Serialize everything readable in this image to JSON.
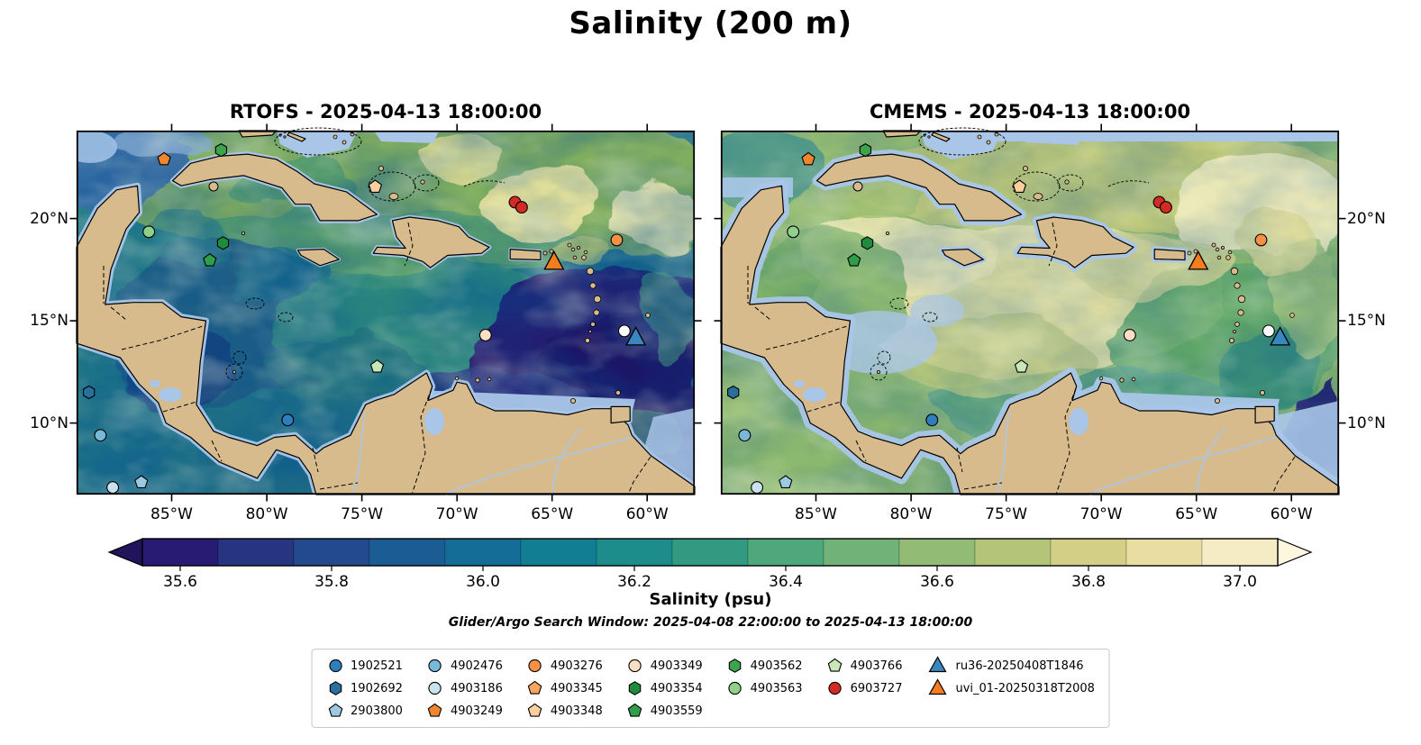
{
  "title": "Salinity (200 m)",
  "panels": [
    {
      "key": "rtofs",
      "title": "RTOFS - 2025-04-13 18:00:00"
    },
    {
      "key": "cmems",
      "title": "CMEMS - 2025-04-13 18:00:00"
    }
  ],
  "axes": {
    "extent": {
      "lon_min": -90,
      "lon_max": -57.5,
      "lat_min": 6.5,
      "lat_max": 24.3
    },
    "lat_ticks": [
      {
        "label": "20°N",
        "lat": 20
      },
      {
        "label": "15°N",
        "lat": 15
      },
      {
        "label": "10°N",
        "lat": 10
      }
    ],
    "lon_ticks": [
      {
        "label": "85°W",
        "lon": -85
      },
      {
        "label": "80°W",
        "lon": -80
      },
      {
        "label": "75°W",
        "lon": -75
      },
      {
        "label": "70°W",
        "lon": -70
      },
      {
        "label": "65°W",
        "lon": -65
      },
      {
        "label": "60°W",
        "lon": -60
      }
    ]
  },
  "colorbar": {
    "label": "Salinity (psu)",
    "tick_labels": [
      "35.6",
      "35.8",
      "36.0",
      "36.2",
      "36.4",
      "36.6",
      "36.8",
      "37.0"
    ],
    "tick_values": [
      35.6,
      35.8,
      36.0,
      36.2,
      36.4,
      36.6,
      36.8,
      37.0
    ],
    "vmin": 35.55,
    "vmax": 37.05,
    "segment_colors": [
      "#281b73",
      "#27347f",
      "#234a8c",
      "#1b5c94",
      "#146d96",
      "#117e93",
      "#1c8d8b",
      "#339a82",
      "#4fa77c",
      "#70b277",
      "#92bc75",
      "#b4c57a",
      "#d3cf87",
      "#e9dda1",
      "#f5ebc4"
    ],
    "under_color": "#23125c",
    "over_color": "#fdf7e0"
  },
  "subtitle": "Glider/Argo Search Window: 2025-04-08 22:00:00 to 2025-04-13 18:00:00",
  "map_colors": {
    "land": "#d8bb8c",
    "shallow": "#a9c6e8",
    "coast": "#000000"
  },
  "legend": {
    "columns": [
      [
        "1902521",
        "1902692",
        "2903800"
      ],
      [
        "4902476",
        "4903186",
        "4903249"
      ],
      [
        "4903276",
        "4903345",
        "4903348"
      ],
      [
        "4903349",
        "4903354",
        "4903559"
      ],
      [
        "4903562",
        "4903563"
      ],
      [
        "4903766",
        "6903727"
      ],
      [
        "ru36-20250408T1846",
        "uvi_01-20250318T2008"
      ]
    ],
    "styles": {
      "1902521": {
        "shape": "circle",
        "color": "#2e7ebc"
      },
      "1902692": {
        "shape": "hexagon",
        "color": "#2a6f9e"
      },
      "2903800": {
        "shape": "pentagon",
        "color": "#9ec9e2"
      },
      "4902476": {
        "shape": "circle",
        "color": "#7ab8d9"
      },
      "4903186": {
        "shape": "circle",
        "color": "#c9e2f0"
      },
      "4903249": {
        "shape": "pentagon",
        "color": "#f0862c"
      },
      "4903276": {
        "shape": "circle",
        "color": "#f59044"
      },
      "4903345": {
        "shape": "pentagon",
        "color": "#f8a55e"
      },
      "4903348": {
        "shape": "pentagon",
        "color": "#fbcf9e"
      },
      "4903349": {
        "shape": "circle",
        "color": "#fcdfc2"
      },
      "4903354": {
        "shape": "hexagon",
        "color": "#1e8c3c"
      },
      "4903559": {
        "shape": "pentagon",
        "color": "#2e9e4a"
      },
      "4903562": {
        "shape": "hexagon",
        "color": "#3da44e"
      },
      "4903563": {
        "shape": "circle",
        "color": "#8fd08a"
      },
      "4903766": {
        "shape": "pentagon",
        "color": "#c8e8b8"
      },
      "6903727": {
        "shape": "circle",
        "color": "#d12b24"
      },
      "ru36-20250408T1846": {
        "shape": "triangle",
        "color": "#3a87c0"
      },
      "uvi_01-20250318T2008": {
        "shape": "triangle",
        "color": "#f57c1f"
      }
    }
  },
  "chart_data": {
    "type": "heatmap",
    "title": "Salinity (200 m)",
    "variable": "Salinity (psu)",
    "depth_m": 200,
    "panels": [
      {
        "model": "RTOFS",
        "time": "2025-04-13 18:00:00"
      },
      {
        "model": "CMEMS",
        "time": "2025-04-13 18:00:00"
      }
    ],
    "extent": {
      "lon": [
        -90,
        -57.5
      ],
      "lat": [
        6.5,
        24.3
      ]
    },
    "color_scale": {
      "ticks": [
        35.6,
        35.8,
        36.0,
        36.2,
        36.4,
        36.6,
        36.8,
        37.0
      ],
      "range": [
        35.55,
        37.05
      ]
    },
    "search_window": "2025-04-08 22:00:00 to 2025-04-13 18:00:00",
    "observations": [
      {
        "id": "4903249",
        "lon": -85.4,
        "lat": 22.9
      },
      {
        "id": "4903562",
        "lon": -82.4,
        "lat": 23.35
      },
      {
        "id": "4903348",
        "lon": -74.3,
        "lat": 21.55
      },
      {
        "id": "6903727",
        "lon": -66.95,
        "lat": 20.8
      },
      {
        "id": "6903727",
        "lon": -66.6,
        "lat": 20.55
      },
      {
        "id": "4903276",
        "lon": -61.6,
        "lat": 18.95
      },
      {
        "id": "4903563",
        "lon": -86.2,
        "lat": 19.35
      },
      {
        "id": "4903354",
        "lon": -82.3,
        "lat": 18.8
      },
      {
        "id": "4903559",
        "lon": -83.0,
        "lat": 17.95
      },
      {
        "id": "uvi_01-20250318T2008",
        "lon": -64.9,
        "lat": 17.85
      },
      {
        "id": "4903349",
        "lon": -68.5,
        "lat": 14.3
      },
      {
        "id": "position",
        "shape": "circle",
        "color": "#ffffff",
        "lon": -61.2,
        "lat": 14.5
      },
      {
        "id": "ru36-20250408T1846",
        "lon": -60.6,
        "lat": 14.15
      },
      {
        "id": "4903766",
        "lon": -74.2,
        "lat": 12.75
      },
      {
        "id": "1902521",
        "lon": -78.9,
        "lat": 10.15
      },
      {
        "id": "1902692",
        "lon": -89.35,
        "lat": 11.5
      },
      {
        "id": "4902476",
        "lon": -88.75,
        "lat": 9.4
      },
      {
        "id": "2903800",
        "lon": -86.6,
        "lat": 7.1
      },
      {
        "id": "4903186",
        "lon": -88.1,
        "lat": 6.85
      }
    ]
  }
}
